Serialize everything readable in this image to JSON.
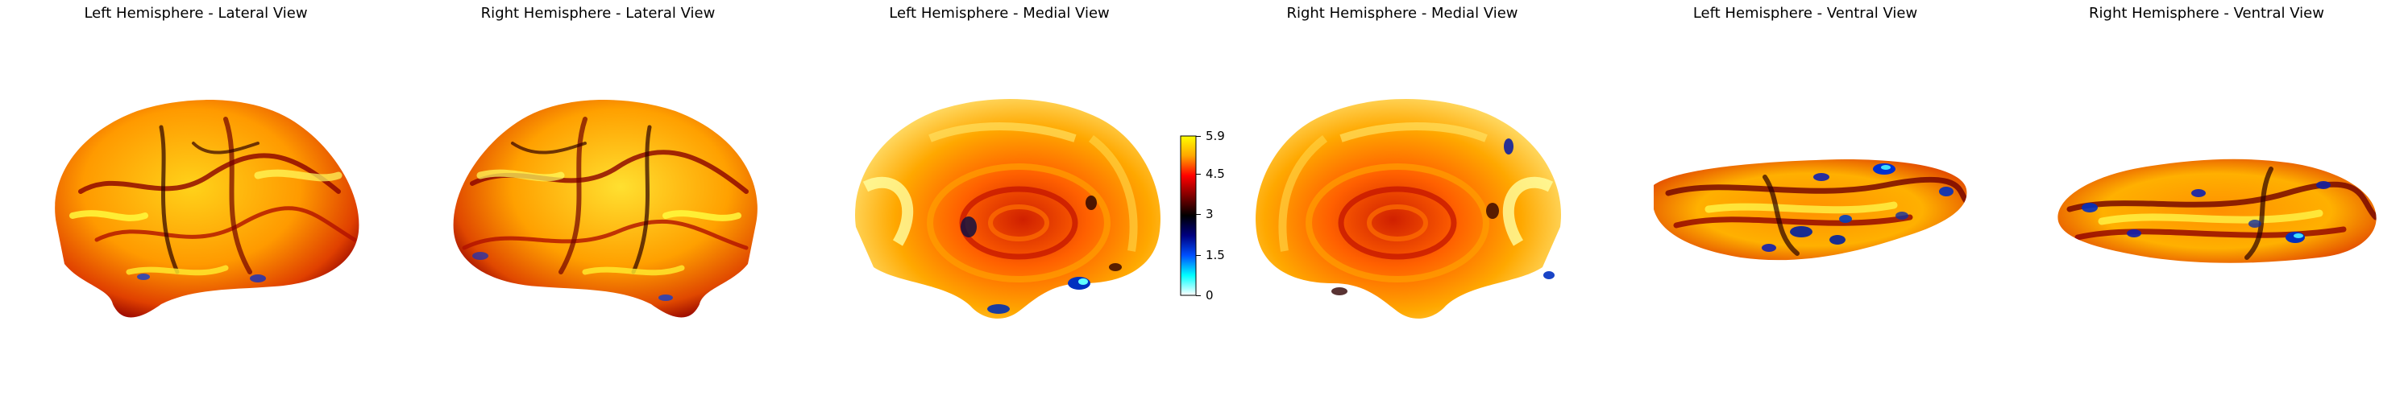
{
  "panels": [
    {
      "title": "Left Hemisphere - Lateral View"
    },
    {
      "title": "Right Hemisphere - Lateral View"
    },
    {
      "title": "Left Hemisphere - Medial View"
    },
    {
      "title": "Right Hemisphere - Medial View"
    },
    {
      "title": "Left Hemisphere - Ventral View"
    },
    {
      "title": "Right Hemisphere - Ventral View"
    }
  ],
  "colorbar": {
    "min": 0,
    "max": 5.9,
    "ticks": [
      "0",
      "1.5",
      "3",
      "4.5",
      "5.9"
    ],
    "tick_values": [
      0,
      1.5,
      3,
      4.5,
      5.9
    ],
    "colormap": [
      "#ffffff",
      "#00ffff",
      "#0050ff",
      "#000080",
      "#000000",
      "#800000",
      "#ff0000",
      "#ffa500",
      "#ffff00"
    ]
  }
}
